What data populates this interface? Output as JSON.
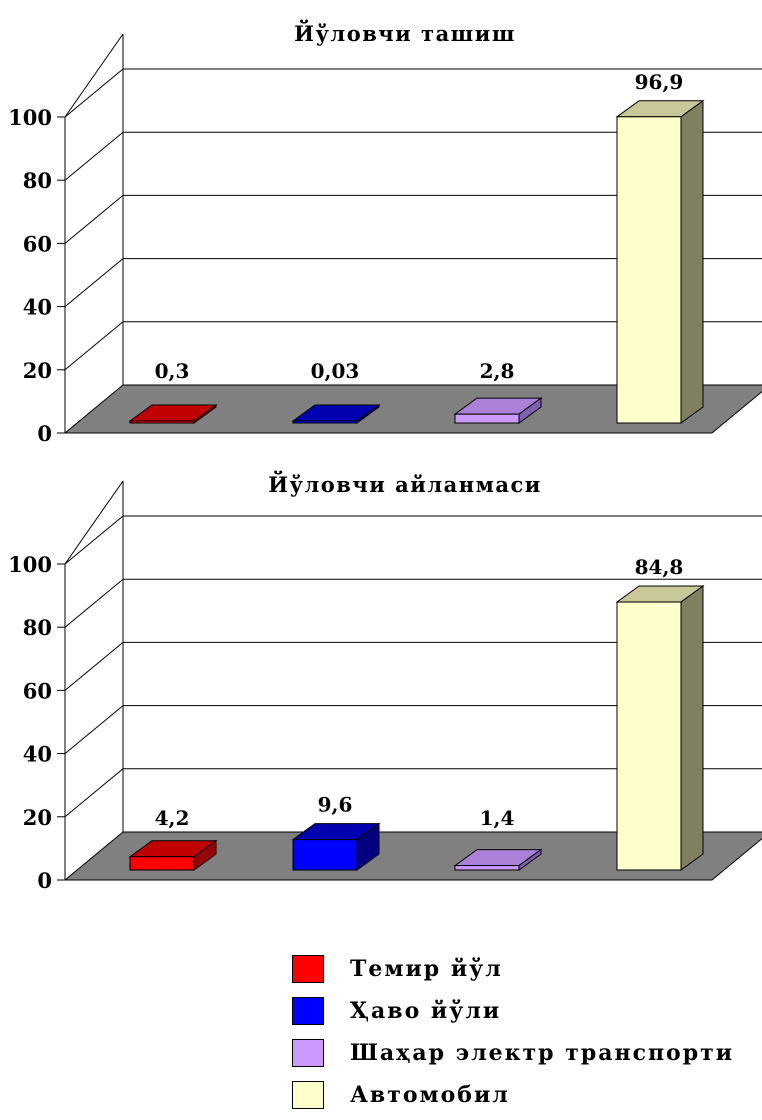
{
  "chart_data": [
    {
      "type": "bar",
      "title": "Йўловчи ташиш",
      "categories": [
        "Темир йўл",
        "Ҳаво йўли",
        "Шаҳар электр транспорти",
        "Автомобил"
      ],
      "values": [
        0.3,
        0.03,
        2.8,
        96.9
      ],
      "data_labels": [
        "0,3",
        "0,03",
        "2,8",
        "96,9"
      ],
      "yticks": [
        "0",
        "20",
        "40",
        "60",
        "80",
        "100"
      ],
      "ylim": [
        0,
        100
      ],
      "grid": true,
      "style": "3d"
    },
    {
      "type": "bar",
      "title": "Йўловчи айланмаси",
      "categories": [
        "Темир йўл",
        "Ҳаво йўли",
        "Шаҳар электр транспорти",
        "Автомобил"
      ],
      "values": [
        4.2,
        9.6,
        1.4,
        84.8
      ],
      "data_labels": [
        "4,2",
        "9,6",
        "1,4",
        "84,8"
      ],
      "yticks": [
        "0",
        "20",
        "40",
        "60",
        "80",
        "100"
      ],
      "ylim": [
        0,
        100
      ],
      "grid": true,
      "style": "3d"
    }
  ],
  "legend": {
    "placement": "bottom-right",
    "items": [
      {
        "label": "Темир йўл",
        "color": "#ff0000"
      },
      {
        "label": "Ҳаво йўли",
        "color": "#0000ff"
      },
      {
        "label": "Шаҳар электр транспорти",
        "color": "#cc99ff"
      },
      {
        "label": "Автомобил",
        "color": "#ffffcc"
      }
    ]
  },
  "colors": {
    "floor": "#808080",
    "series_front": [
      "#ff0000",
      "#0000ff",
      "#cc99ff",
      "#ffffcc"
    ],
    "series_top": [
      "#c00000",
      "#0000b0",
      "#aa80d8",
      "#c8c898"
    ],
    "series_side": [
      "#990000",
      "#000080",
      "#8060b0",
      "#808060"
    ]
  }
}
